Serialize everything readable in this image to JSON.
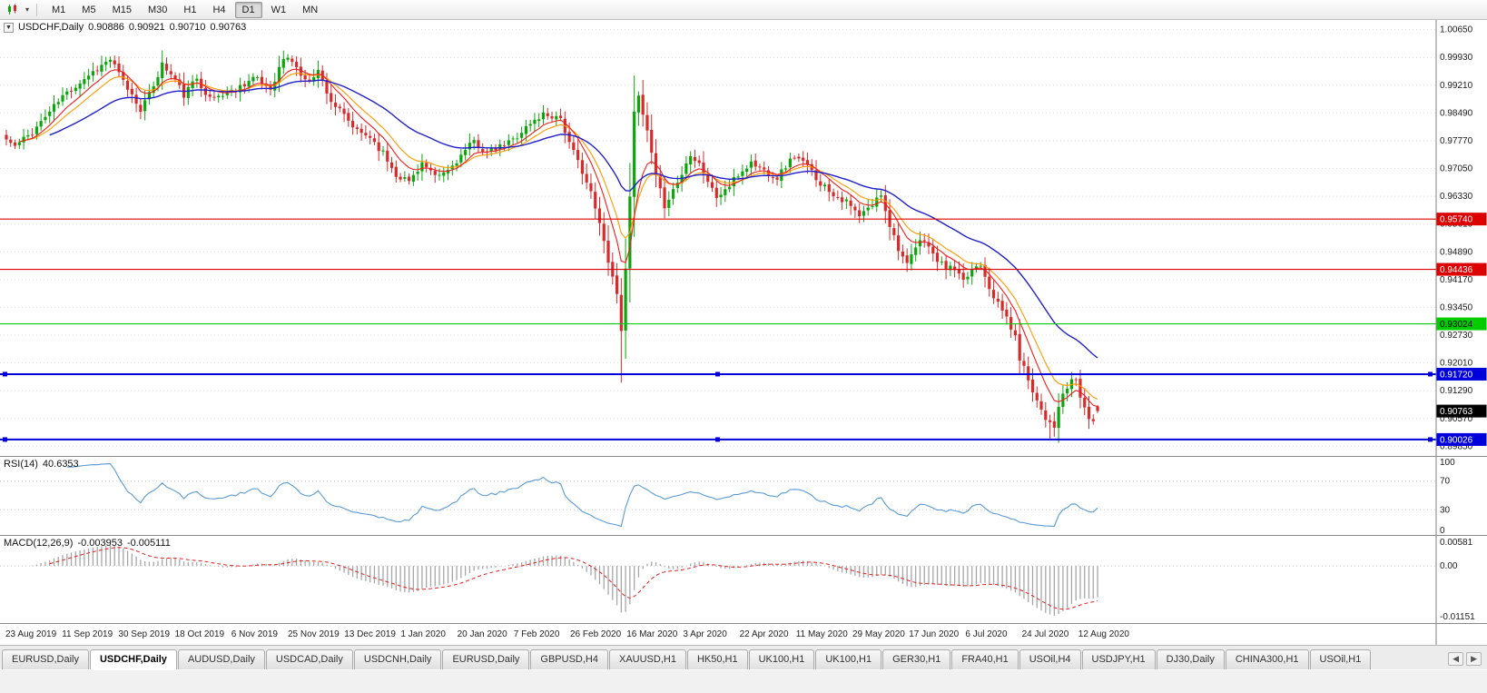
{
  "toolbar": {
    "chart_icon": "candlestick-chart-icon",
    "timeframes": [
      {
        "label": "M1",
        "active": false
      },
      {
        "label": "M5",
        "active": false
      },
      {
        "label": "M15",
        "active": false
      },
      {
        "label": "M30",
        "active": false
      },
      {
        "label": "H1",
        "active": false
      },
      {
        "label": "H4",
        "active": false
      },
      {
        "label": "D1",
        "active": true
      },
      {
        "label": "W1",
        "active": false
      },
      {
        "label": "MN",
        "active": false
      }
    ]
  },
  "chart": {
    "title": "USDCHF,Daily",
    "ohlc": {
      "open": "0.90886",
      "high": "0.90921",
      "low": "0.90710",
      "close": "0.90763"
    },
    "price_axis": {
      "min": 0.896,
      "max": 1.009,
      "ticks": [
        "1.00650",
        "0.99930",
        "0.99210",
        "0.98490",
        "0.97770",
        "0.97050",
        "0.96330",
        "0.95610",
        "0.94890",
        "0.94170",
        "0.93450",
        "0.92730",
        "0.92010",
        "0.91290",
        "0.90570",
        "0.89850"
      ]
    },
    "levels": [
      {
        "price": 0.9574,
        "label": "0.95740",
        "color": "#dd0000",
        "thick": false,
        "handles": false,
        "text_color": "#ffffff"
      },
      {
        "price": 0.94436,
        "label": "0.94436",
        "color": "#dd0000",
        "thick": false,
        "handles": false,
        "text_color": "#ffffff"
      },
      {
        "price": 0.93024,
        "label": "0.93024",
        "color": "#00cc00",
        "thick": false,
        "handles": false,
        "text_color": "#000000"
      },
      {
        "price": 0.9172,
        "label": "0.91720",
        "color": "#0000dd",
        "thick": true,
        "handles": true,
        "text_color": "#ffffff"
      },
      {
        "price": 0.90026,
        "label": "0.90026",
        "color": "#0000dd",
        "thick": true,
        "handles": true,
        "text_color": "#ffffff"
      }
    ],
    "current_price": {
      "value": 0.90763,
      "label": "0.90763",
      "bg": "#000000",
      "text_color": "#ffffff"
    },
    "colors": {
      "up": "#0ca50c",
      "down": "#d62b2b",
      "ma_fast": "#ee1c1c",
      "ma_mid": "#ff9900",
      "ma_slow": "#2020cc",
      "rsi_line": "#5b9bd5",
      "macd_hist": "#a6a6a6",
      "macd_signal": "#e02020",
      "grid": "#dcdcdc",
      "axis_text": "#1a1a1a"
    },
    "price_path": {
      "anchors": [
        [
          0,
          0.978
        ],
        [
          2,
          0.9762
        ],
        [
          6,
          0.98
        ],
        [
          13,
          0.9892
        ],
        [
          19,
          0.9948
        ],
        [
          24,
          0.9988
        ],
        [
          27,
          0.993
        ],
        [
          31,
          0.986
        ],
        [
          33,
          0.9895
        ],
        [
          36,
          0.9975
        ],
        [
          39,
          0.9935
        ],
        [
          41,
          0.9895
        ],
        [
          44,
          0.994
        ],
        [
          47,
          0.9885
        ],
        [
          52,
          0.9905
        ],
        [
          57,
          0.994
        ],
        [
          61,
          0.9912
        ],
        [
          64,
          0.999
        ],
        [
          66,
          0.9985
        ],
        [
          69,
          0.993
        ],
        [
          72,
          0.9958
        ],
        [
          75,
          0.988
        ],
        [
          78,
          0.984
        ],
        [
          81,
          0.98
        ],
        [
          84,
          0.9788
        ],
        [
          87,
          0.9745
        ],
        [
          90,
          0.969
        ],
        [
          93,
          0.9672
        ],
        [
          96,
          0.972
        ],
        [
          99,
          0.968
        ],
        [
          102,
          0.97
        ],
        [
          105,
          0.9738
        ],
        [
          108,
          0.9775
        ],
        [
          111,
          0.9745
        ],
        [
          114,
          0.976
        ],
        [
          117,
          0.978
        ],
        [
          120,
          0.9812
        ],
        [
          124,
          0.9846
        ],
        [
          128,
          0.9838
        ],
        [
          130,
          0.9768
        ],
        [
          133,
          0.97
        ],
        [
          135,
          0.964
        ],
        [
          137,
          0.956
        ],
        [
          139,
          0.947
        ],
        [
          141,
          0.938
        ],
        [
          142,
          0.929
        ],
        [
          143,
          0.944
        ],
        [
          144,
          0.964
        ],
        [
          145,
          0.986
        ],
        [
          146,
          0.9885
        ],
        [
          148,
          0.98
        ],
        [
          150,
          0.968
        ],
        [
          152,
          0.961
        ],
        [
          154,
          0.965
        ],
        [
          156,
          0.969
        ],
        [
          158,
          0.9745
        ],
        [
          160,
          0.972
        ],
        [
          162,
          0.9672
        ],
        [
          164,
          0.963
        ],
        [
          167,
          0.966
        ],
        [
          169,
          0.9688
        ],
        [
          172,
          0.972
        ],
        [
          175,
          0.97
        ],
        [
          178,
          0.9682
        ],
        [
          180,
          0.9712
        ],
        [
          182,
          0.9738
        ],
        [
          185,
          0.971
        ],
        [
          188,
          0.9668
        ],
        [
          191,
          0.964
        ],
        [
          194,
          0.9618
        ],
        [
          197,
          0.958
        ],
        [
          200,
          0.961
        ],
        [
          202,
          0.964
        ],
        [
          204,
          0.956
        ],
        [
          206,
          0.95
        ],
        [
          208,
          0.9452
        ],
        [
          210,
          0.95
        ],
        [
          212,
          0.9525
        ],
        [
          214,
          0.948
        ],
        [
          216,
          0.9455
        ],
        [
          219,
          0.9442
        ],
        [
          221,
          0.9408
        ],
        [
          223,
          0.9445
        ],
        [
          225,
          0.946
        ],
        [
          227,
          0.94
        ],
        [
          229,
          0.9352
        ],
        [
          231,
          0.932
        ],
        [
          233,
          0.9265
        ],
        [
          234,
          0.9215
        ],
        [
          236,
          0.916
        ],
        [
          238,
          0.9105
        ],
        [
          240,
          0.906
        ],
        [
          242,
          0.904
        ],
        [
          244,
          0.912
        ],
        [
          246,
          0.915
        ],
        [
          247,
          0.916
        ],
        [
          248,
          0.911
        ],
        [
          249,
          0.9085
        ],
        [
          250,
          0.906
        ],
        [
          251,
          0.905
        ],
        [
          252,
          0.9076
        ]
      ],
      "spikes": [
        {
          "i": 142,
          "low": 0.915
        },
        {
          "i": 146,
          "high": 0.9905
        },
        {
          "i": 241,
          "low": 0.9005
        },
        {
          "i": 250,
          "low": 0.903
        }
      ]
    },
    "dates": [
      "23 Aug 2019",
      "11 Sep 2019",
      "30 Sep 2019",
      "18 Oct 2019",
      "6 Nov 2019",
      "25 Nov 2019",
      "13 Dec 2019",
      "1 Jan 2020",
      "20 Jan 2020",
      "7 Feb 2020",
      "26 Feb 2020",
      "16 Mar 2020",
      "3 Apr 2020",
      "22 Apr 2020",
      "11 May 2020",
      "29 May 2020",
      "17 Jun 2020",
      "6 Jul 2020",
      "24 Jul 2020",
      "12 Aug 2020"
    ]
  },
  "rsi": {
    "title": "RSI(14)",
    "value": "40.6353",
    "axis": [
      "100",
      "70",
      "30",
      "0"
    ],
    "guides": [
      70,
      30
    ]
  },
  "macd": {
    "title": "MACD(12,26,9)",
    "value_main": "-0.003953",
    "value_signal": "-0.005111",
    "axis_top": "0.00581",
    "axis_zero": "0.00",
    "axis_bottom": "-0.01151"
  },
  "tabs": {
    "items": [
      {
        "label": "EURUSD,Daily",
        "active": false
      },
      {
        "label": "USDCHF,Daily",
        "active": true
      },
      {
        "label": "AUDUSD,Daily",
        "active": false
      },
      {
        "label": "USDCAD,Daily",
        "active": false
      },
      {
        "label": "USDCNH,Daily",
        "active": false
      },
      {
        "label": "EURUSD,Daily",
        "active": false
      },
      {
        "label": "GBPUSD,H4",
        "active": false
      },
      {
        "label": "XAUUSD,H1",
        "active": false
      },
      {
        "label": "HK50,H1",
        "active": false
      },
      {
        "label": "UK100,H1",
        "active": false
      },
      {
        "label": "UK100,H1",
        "active": false
      },
      {
        "label": "GER30,H1",
        "active": false
      },
      {
        "label": "FRA40,H1",
        "active": false
      },
      {
        "label": "USOil,H4",
        "active": false
      },
      {
        "label": "USDJPY,H1",
        "active": false
      },
      {
        "label": "DJ30,Daily",
        "active": false
      },
      {
        "label": "CHINA300,H1",
        "active": false
      },
      {
        "label": "USOil,H1",
        "active": false
      }
    ],
    "scroll_left": "◀",
    "scroll_right": "▶"
  }
}
